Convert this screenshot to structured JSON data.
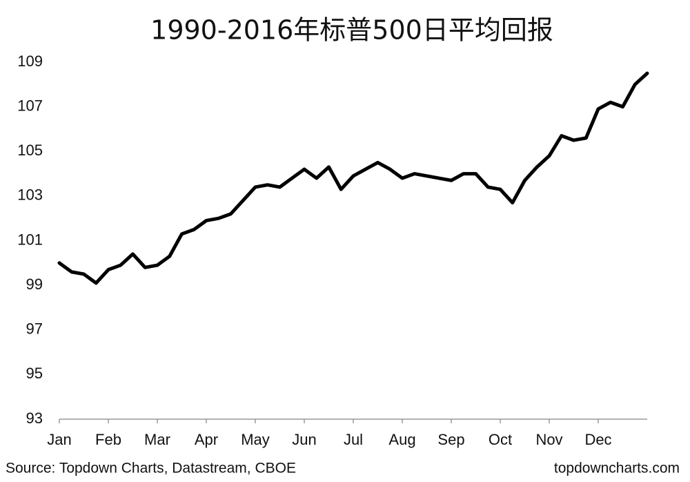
{
  "chart_data": {
    "type": "line",
    "title": "1990-2016年标普500日平均回报",
    "source": "Source: Topdown Charts, Datastream, CBOE",
    "watermark": "topdowncharts.com",
    "categories": [
      "Jan",
      null,
      null,
      null,
      "Feb",
      null,
      null,
      null,
      "Mar",
      null,
      null,
      null,
      "Apr",
      null,
      null,
      null,
      "May",
      null,
      null,
      null,
      "Jun",
      null,
      null,
      null,
      "Jul",
      null,
      null,
      null,
      "Aug",
      null,
      null,
      null,
      "Sep",
      null,
      null,
      null,
      "Oct",
      null,
      null,
      null,
      "Nov",
      null,
      null,
      null,
      "Dec",
      null,
      null,
      null,
      null
    ],
    "values": [
      100.0,
      99.6,
      99.5,
      99.1,
      99.7,
      99.9,
      100.4,
      99.8,
      99.9,
      100.3,
      101.3,
      101.5,
      101.9,
      102.0,
      102.2,
      102.8,
      103.4,
      103.5,
      103.4,
      103.8,
      104.2,
      103.8,
      104.3,
      103.3,
      103.9,
      104.2,
      104.5,
      104.2,
      103.8,
      104.0,
      103.9,
      103.8,
      103.7,
      104.0,
      104.0,
      103.4,
      103.3,
      102.7,
      103.7,
      104.3,
      104.8,
      105.7,
      105.5,
      105.6,
      106.9,
      107.2,
      107.0,
      108.0,
      108.5
    ],
    "color": "#000000",
    "ylim": [
      93,
      109
    ],
    "yticks": [
      93,
      95,
      97,
      99,
      101,
      103,
      105,
      107,
      109
    ],
    "grid": false
  }
}
